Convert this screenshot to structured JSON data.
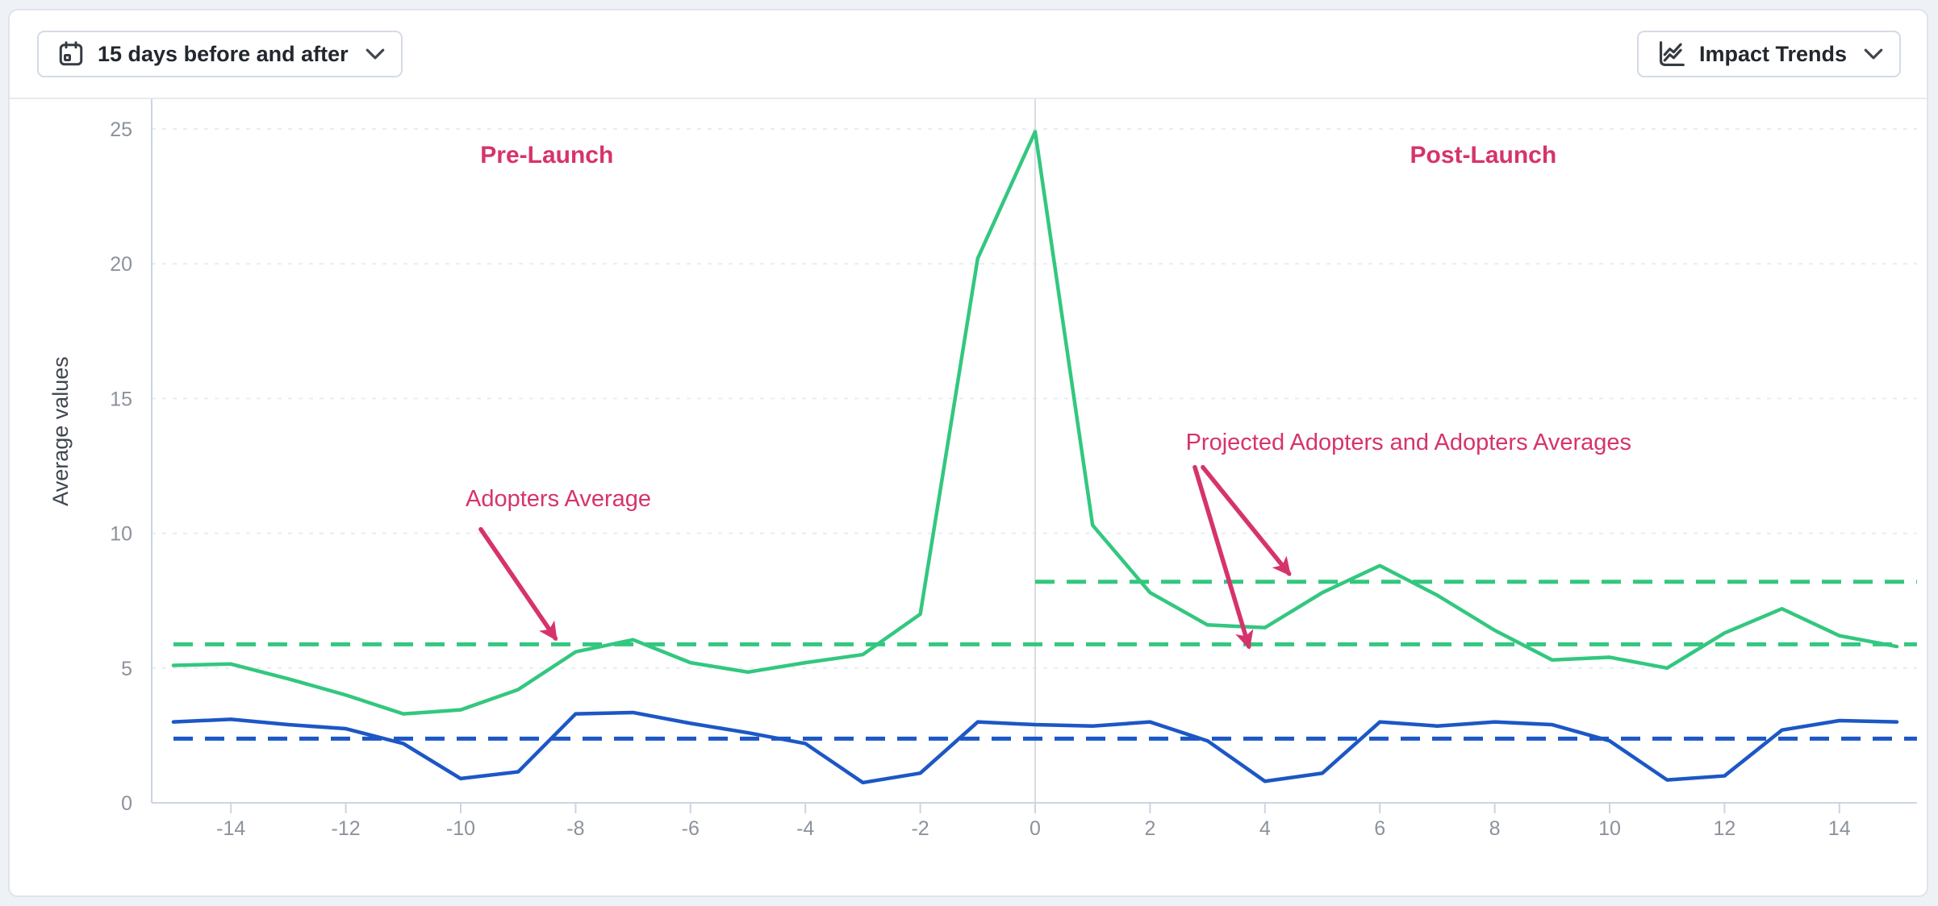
{
  "header": {
    "range_selector": {
      "label": "15 days before and after"
    },
    "metric_selector": {
      "label": "Impact Trends"
    }
  },
  "chart_data": {
    "type": "line",
    "title": "",
    "xlabel": "",
    "ylabel": "Average values",
    "xlim": [
      -15.35,
      15.35
    ],
    "ylim": [
      0,
      26
    ],
    "grid": "horizontal-dashed",
    "legend_position": "none",
    "launch_x": 0,
    "x": [
      -15,
      -14,
      -13,
      -12,
      -11,
      -10,
      -9,
      -8,
      -7,
      -6,
      -5,
      -4,
      -3,
      -2,
      -1,
      0,
      1,
      2,
      3,
      4,
      5,
      6,
      7,
      8,
      9,
      10,
      11,
      12,
      13,
      14,
      15
    ],
    "xticks": [
      -14,
      -12,
      -10,
      -8,
      -6,
      -4,
      -2,
      0,
      2,
      4,
      6,
      8,
      10,
      12,
      14
    ],
    "yticks": [
      0,
      5,
      10,
      15,
      20,
      25
    ],
    "series": [
      {
        "name": "adopters",
        "color": "#33c77f",
        "style": "solid",
        "values": [
          5.1,
          5.15,
          4.6,
          4.0,
          3.3,
          3.45,
          4.2,
          5.6,
          6.05,
          5.2,
          4.85,
          5.2,
          5.5,
          7.0,
          20.2,
          24.9,
          10.3,
          7.8,
          6.6,
          6.5,
          7.8,
          8.8,
          7.7,
          6.4,
          5.3,
          5.4,
          5.0,
          6.3,
          7.2,
          6.2,
          5.8
        ]
      },
      {
        "name": "secondary",
        "color": "#1c57c5",
        "style": "solid",
        "values": [
          3.0,
          3.1,
          2.9,
          2.75,
          2.2,
          0.9,
          1.15,
          3.3,
          3.35,
          2.95,
          2.6,
          2.2,
          0.75,
          1.1,
          3.0,
          2.9,
          2.85,
          3.0,
          2.3,
          0.8,
          1.1,
          3.0,
          2.85,
          3.0,
          2.9,
          2.3,
          0.85,
          1.0,
          2.7,
          3.05,
          3.0
        ]
      }
    ],
    "reference_lines": [
      {
        "name": "adopters-average-pre-launch",
        "value": 5.88,
        "from": -15,
        "to": 15.35,
        "color": "#33c77f",
        "style": "dashed"
      },
      {
        "name": "adopters-average-post-launch",
        "value": 8.2,
        "from": 0,
        "to": 15.35,
        "color": "#33c77f",
        "style": "dashed"
      },
      {
        "name": "secondary-average",
        "value": 2.38,
        "from": -15,
        "to": 15.35,
        "color": "#1c57c5",
        "style": "dashed"
      }
    ],
    "annotations": [
      {
        "name": "pre-launch-label",
        "text": "Pre-Launch",
        "x": -8.5,
        "y": 23.75,
        "bold": true
      },
      {
        "name": "post-launch-label",
        "text": "Post-Launch",
        "x": 7.8,
        "y": 23.75,
        "bold": true
      },
      {
        "name": "adopters-average-label",
        "text": "Adopters Average",
        "x": -8.3,
        "y": 11.0,
        "bold": false
      },
      {
        "name": "projected-averages-label",
        "text": "Projected Adopters and Adopters Averages",
        "x": 6.5,
        "y": 13.1,
        "bold": false
      }
    ],
    "arrows": [
      {
        "name": "adopters-average-arrow",
        "x1": -9.65,
        "y1": 10.15,
        "x2": -8.35,
        "y2": 6.1
      },
      {
        "name": "projected-average-arrow",
        "x1": 2.78,
        "y1": 12.45,
        "x2": 3.72,
        "y2": 5.8
      },
      {
        "name": "post-launch-average-arrow",
        "x1": 2.92,
        "y1": 12.45,
        "x2": 4.42,
        "y2": 8.5
      }
    ],
    "colors": {
      "annotation": "#d6336c",
      "grid": "#e9ecf0",
      "axis": "#ccd5e1",
      "tick_text": "#8c929c",
      "zero_line": "#d9dde3",
      "axis_title": "#40464f"
    }
  }
}
